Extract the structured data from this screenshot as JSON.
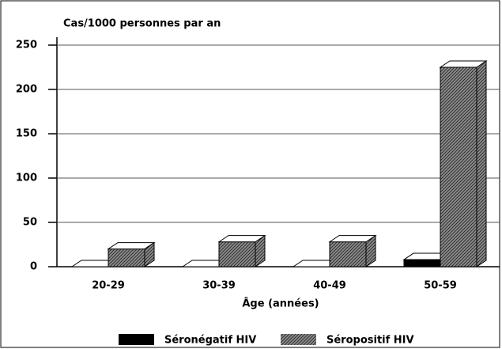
{
  "chart_data": {
    "type": "bar3d",
    "title": "Cas/1000 personnes par an",
    "x_label": "Âge (années)",
    "categories": [
      "20-29",
      "30-39",
      "40-49",
      "50-59"
    ],
    "series": [
      {
        "name": "Séronégatif HIV",
        "color": "#000000",
        "values": [
          0,
          0,
          0,
          8
        ]
      },
      {
        "name": "Séropositif HIV",
        "color": "#8c8c8c",
        "values": [
          20,
          28,
          28,
          225
        ]
      }
    ],
    "ylim": [
      0,
      250
    ],
    "yticks": [
      0,
      50,
      100,
      150,
      200,
      250
    ],
    "grid": true
  }
}
